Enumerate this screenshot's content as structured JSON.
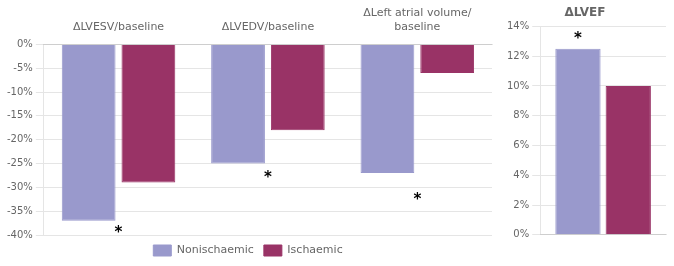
{
  "chart_data": [
    {
      "type": "bar",
      "categories": [
        "ΔLVESV/baseline",
        "ΔLVEDV/baseline",
        "ΔLeft atrial volume/\nbaseline"
      ],
      "series": [
        {
          "name": "Nonischaemic",
          "color": "#9999cc",
          "values": [
            -37,
            -25,
            -27
          ]
        },
        {
          "name": "Ischaemic",
          "color": "#993366",
          "values": [
            -29,
            -18,
            -6
          ]
        }
      ],
      "ylim": [
        -40,
        0
      ],
      "yticks": [
        {
          "value": 0,
          "label": "0%"
        },
        {
          "value": -5,
          "label": "-5%"
        },
        {
          "value": -10,
          "label": "-10%"
        },
        {
          "value": -15,
          "label": "-15%"
        },
        {
          "value": -20,
          "label": "-20%"
        },
        {
          "value": -25,
          "label": "-25%"
        },
        {
          "value": -30,
          "label": "-30%"
        },
        {
          "value": -35,
          "label": "-35%"
        },
        {
          "value": -40,
          "label": "-40%"
        }
      ],
      "annotations": [
        {
          "text": "*",
          "category": "ΔLVESV/baseline",
          "y": -38.5
        },
        {
          "text": "*",
          "category": "ΔLVEDV/baseline",
          "y": -27.0
        },
        {
          "text": "*",
          "category": "ΔLeft atrial volume/\nbaseline",
          "y": -31.5
        }
      ],
      "grid": true,
      "legend": "bottom"
    },
    {
      "type": "bar",
      "title": "ΔLVEF",
      "categories": [
        null
      ],
      "series": [
        {
          "name": "Nonischaemic",
          "color": "#9999cc",
          "values": [
            12.5
          ]
        },
        {
          "name": "Ischaemic",
          "color": "#993366",
          "values": [
            10
          ]
        }
      ],
      "ylim": [
        0,
        14
      ],
      "yticks": [
        {
          "value": 0,
          "label": "0%"
        },
        {
          "value": 2,
          "label": "2%"
        },
        {
          "value": 4,
          "label": "4%"
        },
        {
          "value": 6,
          "label": "6%"
        },
        {
          "value": 8,
          "label": "8%"
        },
        {
          "value": 10,
          "label": "10%"
        },
        {
          "value": 12,
          "label": "12%"
        },
        {
          "value": 14,
          "label": "14%"
        }
      ],
      "annotations": [
        {
          "text": "*",
          "category": null,
          "series": "Nonischaemic",
          "y": 12.9
        }
      ],
      "grid": true
    }
  ]
}
